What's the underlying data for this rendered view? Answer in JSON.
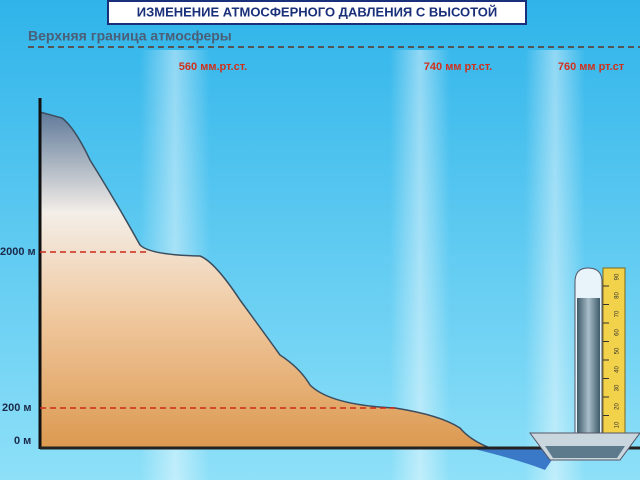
{
  "header": {
    "title": "ИЗМЕНЕНИЕ АТМОСФЕРНОГО ДАВЛЕНИЯ С ВЫСОТОЙ"
  },
  "upper_boundary": "Верхняя граница атмосферы",
  "pressures": [
    "560 мм.рт.ст.",
    "740 мм рт.ст.",
    "760 мм рт.ст"
  ],
  "altitudes": [
    "2000 м",
    "200 м",
    "0 м"
  ],
  "scale": [
    "10",
    "20",
    "30",
    "40",
    "50",
    "60",
    "70",
    "80",
    "90"
  ]
}
